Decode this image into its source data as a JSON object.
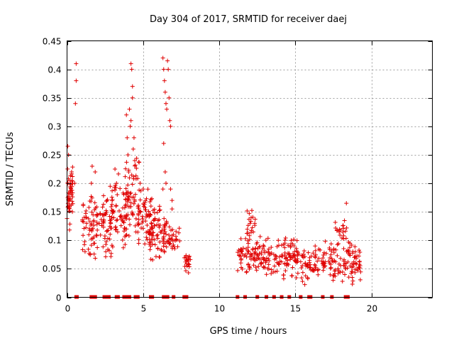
{
  "chart_data": {
    "type": "scatter",
    "title": "Day 304 of 2017, SRMTID for receiver daej",
    "xlabel": "GPS time / hours",
    "ylabel": "SRMTID / TECUs",
    "xlim": [
      0,
      24
    ],
    "ylim": [
      0,
      0.45
    ],
    "xticks": [
      0,
      5,
      10,
      15,
      20
    ],
    "xtick_labels": [
      "0",
      "5",
      "10",
      "15",
      "20"
    ],
    "yticks": [
      0,
      0.05,
      0.1,
      0.15,
      0.2,
      0.25,
      0.3,
      0.35,
      0.4,
      0.45
    ],
    "ytick_labels": [
      "0",
      "0.05",
      "0.1",
      "0.15",
      "0.2",
      "0.25",
      "0.3",
      "0.35",
      "0.4",
      "0.45"
    ],
    "grid": true,
    "marker": "+",
    "color": "#e00000",
    "clusters": [
      {
        "x": [
          0.0,
          0.2
        ],
        "y": [
          0.09,
          0.26
        ],
        "n": 28
      },
      {
        "x": [
          0.2,
          0.4
        ],
        "y": [
          0.13,
          0.24
        ],
        "n": 22
      },
      {
        "x": [
          1.0,
          3.0
        ],
        "y": [
          0.06,
          0.2
        ],
        "n": 120
      },
      {
        "x": [
          2.8,
          4.0
        ],
        "y": [
          0.06,
          0.22
        ],
        "n": 60
      },
      {
        "x": [
          3.8,
          4.8
        ],
        "y": [
          0.1,
          0.26
        ],
        "n": 60
      },
      {
        "x": [
          4.6,
          5.6
        ],
        "y": [
          0.08,
          0.2
        ],
        "n": 60
      },
      {
        "x": [
          5.4,
          6.6
        ],
        "y": [
          0.06,
          0.17
        ],
        "n": 80
      },
      {
        "x": [
          6.6,
          7.4
        ],
        "y": [
          0.07,
          0.13
        ],
        "n": 30
      },
      {
        "x": [
          7.7,
          8.1
        ],
        "y": [
          0.04,
          0.08
        ],
        "n": 22
      },
      {
        "x": [
          11.2,
          13.0
        ],
        "y": [
          0.04,
          0.11
        ],
        "n": 90
      },
      {
        "x": [
          11.8,
          12.4
        ],
        "y": [
          0.1,
          0.16
        ],
        "n": 20
      },
      {
        "x": [
          13.0,
          15.4
        ],
        "y": [
          0.03,
          0.11
        ],
        "n": 110
      },
      {
        "x": [
          15.4,
          16.6
        ],
        "y": [
          0.02,
          0.09
        ],
        "n": 50
      },
      {
        "x": [
          16.6,
          19.3
        ],
        "y": [
          0.02,
          0.1
        ],
        "n": 120
      },
      {
        "x": [
          17.6,
          18.4
        ],
        "y": [
          0.09,
          0.14
        ],
        "n": 20
      }
    ],
    "points": [
      [
        0.05,
        0.265
      ],
      [
        0.1,
        0.25
      ],
      [
        0.3,
        0.22
      ],
      [
        0.35,
        0.15
      ],
      [
        0.6,
        0.41
      ],
      [
        0.6,
        0.38
      ],
      [
        0.55,
        0.34
      ],
      [
        1.65,
        0.23
      ],
      [
        1.85,
        0.22
      ],
      [
        1.6,
        0.2
      ],
      [
        0.3,
        0.18
      ],
      [
        0.5,
        0.2
      ],
      [
        3.15,
        0.225
      ],
      [
        3.25,
        0.2
      ],
      [
        3.9,
        0.32
      ],
      [
        3.95,
        0.28
      ],
      [
        4.0,
        0.25
      ],
      [
        4.05,
        0.22
      ],
      [
        4.1,
        0.33
      ],
      [
        4.15,
        0.3
      ],
      [
        4.2,
        0.31
      ],
      [
        4.2,
        0.41
      ],
      [
        4.25,
        0.4
      ],
      [
        4.3,
        0.37
      ],
      [
        4.3,
        0.35
      ],
      [
        4.35,
        0.26
      ],
      [
        4.4,
        0.28
      ],
      [
        4.45,
        0.24
      ],
      [
        6.3,
        0.42
      ],
      [
        6.35,
        0.4
      ],
      [
        6.4,
        0.38
      ],
      [
        6.45,
        0.36
      ],
      [
        6.5,
        0.34
      ],
      [
        6.55,
        0.33
      ],
      [
        6.6,
        0.415
      ],
      [
        6.65,
        0.4
      ],
      [
        6.7,
        0.35
      ],
      [
        6.75,
        0.31
      ],
      [
        6.8,
        0.3
      ],
      [
        6.35,
        0.27
      ],
      [
        6.45,
        0.22
      ],
      [
        6.5,
        0.2
      ],
      [
        6.8,
        0.19
      ],
      [
        6.9,
        0.17
      ],
      [
        4.8,
        0.2
      ],
      [
        5.0,
        0.19
      ],
      [
        6.3,
        0.19
      ],
      [
        6.9,
        0.155
      ],
      [
        18.35,
        0.165
      ],
      [
        16.3,
        0.09
      ],
      [
        15.7,
        0.055
      ]
    ],
    "zero_markers_x": [
      0.6,
      0.65,
      1.6,
      1.7,
      1.85,
      2.45,
      2.55,
      2.65,
      2.75,
      3.25,
      3.35,
      3.75,
      3.85,
      3.95,
      4.05,
      4.1,
      4.5,
      4.65,
      5.5,
      5.6,
      6.35,
      6.5,
      6.6,
      7.0,
      7.7,
      7.85,
      11.2,
      11.7,
      12.5,
      13.1,
      13.6,
      14.1,
      14.6,
      15.35,
      15.9,
      16.0,
      16.8,
      17.4,
      18.3,
      18.45
    ]
  }
}
